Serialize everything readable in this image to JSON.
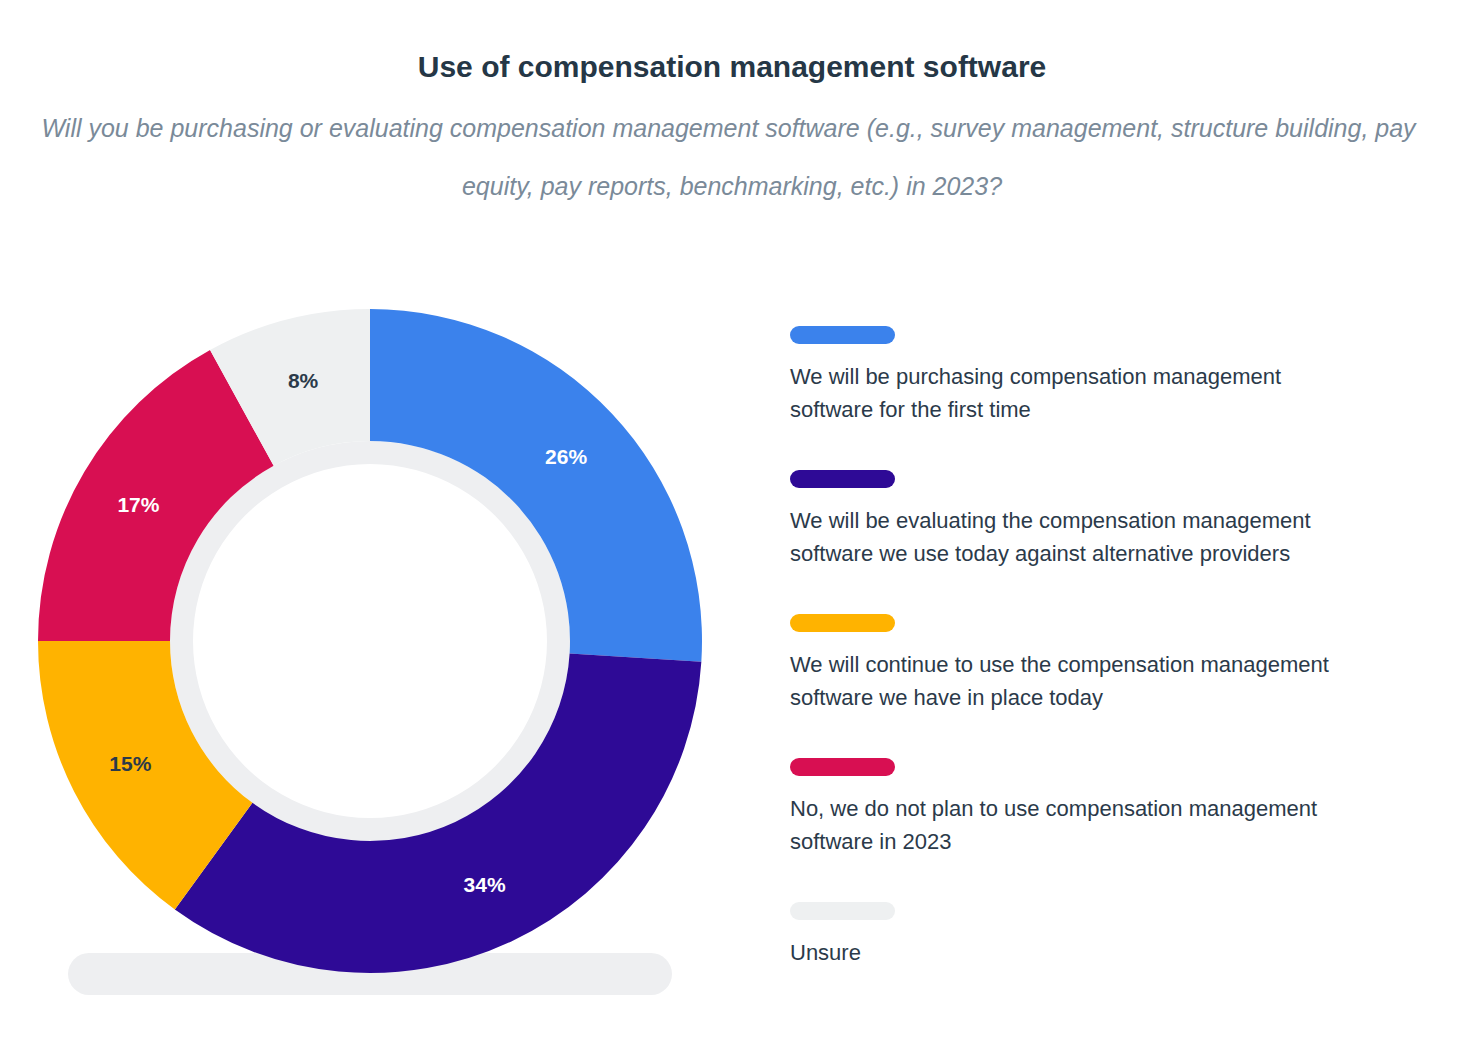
{
  "chart_data": {
    "type": "pie",
    "title": "Use of compensation management software",
    "subtitle": "Will you be purchasing or evaluating compensation management software (e.g., survey management, structure building, pay equity, pay reports, benchmarking, etc.) in 2023?",
    "categories": [
      "We will be purchasing compensation management software for the first time",
      "We will be evaluating the compensation management software we use today against alternative providers",
      "We will continue to use the compensation management software we have in place today",
      "No, we do not plan to use compensation management software in 2023",
      "Unsure"
    ],
    "values": [
      26,
      34,
      15,
      17,
      8
    ],
    "value_labels": [
      "26%",
      "34%",
      "15%",
      "17%",
      "8%"
    ],
    "colors": [
      "#3b82ec",
      "#2e0a96",
      "#ffb300",
      "#d80f52",
      "#eef0f1"
    ],
    "data_labels": true,
    "legend": "right"
  }
}
